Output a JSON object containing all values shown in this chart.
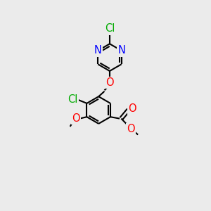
{
  "bg_color": "#ebebeb",
  "bond_color": "#000000",
  "bond_width": 1.5,
  "atom_colors": {
    "N": "#0000ff",
    "O": "#ff0000",
    "Cl": "#00aa00",
    "C": "#000000"
  },
  "font_size": 10.5,
  "fig_width": 3.0,
  "fig_height": 3.0,
  "dpi": 100
}
